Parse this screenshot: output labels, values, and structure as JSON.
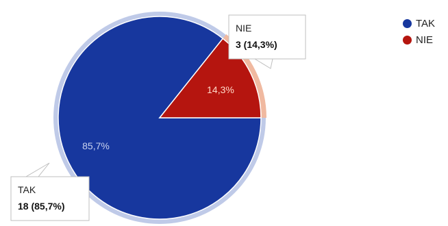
{
  "chart_data": {
    "type": "pie",
    "categories": [
      "TAK",
      "NIE"
    ],
    "values": [
      18,
      3
    ],
    "percent_labels": [
      "85,7%",
      "14,3%"
    ],
    "legend_position": "right",
    "colors": {
      "TAK": "#17379e",
      "NIE": "#b5150f"
    },
    "callouts": [
      {
        "title": "TAK",
        "value": "18 (85,7%)"
      },
      {
        "title": "NIE",
        "value": "3 (14,3%)"
      }
    ],
    "legend": [
      {
        "label": "TAK",
        "color": "#17379e"
      },
      {
        "label": "NIE",
        "color": "#b5150f"
      }
    ]
  }
}
